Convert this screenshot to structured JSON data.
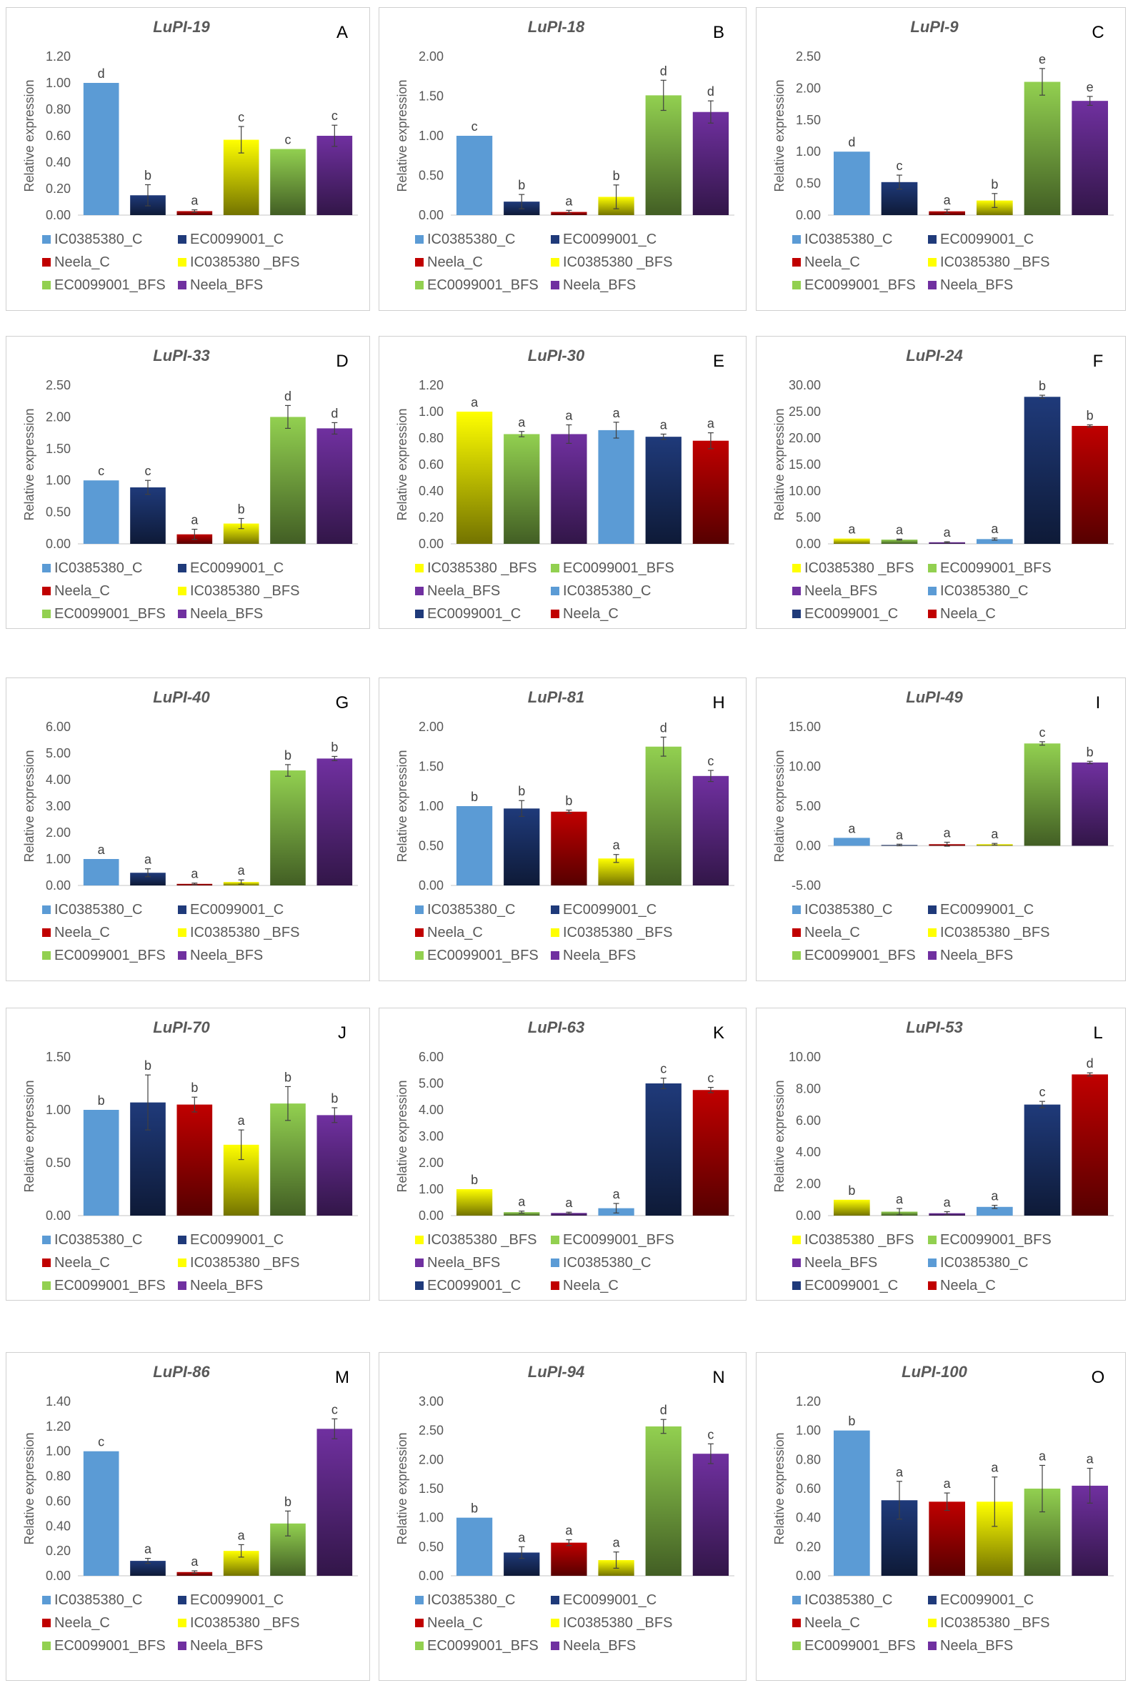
{
  "colors": {
    "IC0385380_C": "#5b9bd5",
    "EC0099001_C": "#1f3a7a",
    "Neela_C": "#c00000",
    "IC0385380_BFS": "#ffff00",
    "EC0099001_BFS": "#92d050",
    "Neela_BFS": "#7030a0"
  },
  "y_axis_label": "Relative expression",
  "legend_orders": {
    "control_first": [
      "IC0385380_C",
      "EC0099001_C",
      "Neela_C",
      "IC0385380 _BFS",
      "EC0099001_BFS",
      "Neela_BFS"
    ],
    "bfs_first": [
      "IC0385380 _BFS",
      "EC0099001_BFS",
      "Neela_BFS",
      "IC0385380_C",
      "EC0099001_C",
      "Neela_C"
    ]
  },
  "chart_data": [
    {
      "panel": "A",
      "title": "LuPI-19",
      "type": "bar",
      "legend": "control_first",
      "ylim": [
        0,
        1.2
      ],
      "ticks": [
        "0.00",
        "0.20",
        "0.40",
        "0.60",
        "0.80",
        "1.00",
        "1.20"
      ],
      "values": [
        1.0,
        0.15,
        0.03,
        0.57,
        0.5,
        0.6
      ],
      "errors": [
        0,
        0.08,
        0.01,
        0.1,
        0,
        0.08
      ],
      "letters": [
        "d",
        "b",
        "a",
        "c",
        "c",
        "c"
      ]
    },
    {
      "panel": "B",
      "title": "LuPI-18",
      "type": "bar",
      "legend": "control_first",
      "ylim": [
        0,
        2.0
      ],
      "ticks": [
        "0.00",
        "0.50",
        "1.00",
        "1.50",
        "2.00"
      ],
      "values": [
        1.0,
        0.17,
        0.04,
        0.23,
        1.51,
        1.3
      ],
      "errors": [
        0,
        0.09,
        0.02,
        0.15,
        0.19,
        0.14
      ],
      "letters": [
        "c",
        "b",
        "a",
        "b",
        "d",
        "d"
      ]
    },
    {
      "panel": "C",
      "title": "LuPI-9",
      "type": "bar",
      "legend": "control_first",
      "ylim": [
        0,
        2.5
      ],
      "ticks": [
        "0.00",
        "0.50",
        "1.00",
        "1.50",
        "2.00",
        "2.50"
      ],
      "values": [
        1.0,
        0.52,
        0.06,
        0.23,
        2.1,
        1.8
      ],
      "errors": [
        0,
        0.11,
        0.03,
        0.11,
        0.21,
        0.07
      ],
      "letters": [
        "d",
        "c",
        "a",
        "b",
        "e",
        "e"
      ]
    },
    {
      "panel": "D",
      "title": "LuPI-33",
      "type": "bar",
      "legend": "control_first",
      "ylim": [
        0,
        2.5
      ],
      "ticks": [
        "0.00",
        "0.50",
        "1.00",
        "1.50",
        "2.00",
        "2.50"
      ],
      "values": [
        1.0,
        0.89,
        0.15,
        0.32,
        2.0,
        1.82
      ],
      "errors": [
        0,
        0.11,
        0.08,
        0.08,
        0.18,
        0.09
      ],
      "letters": [
        "c",
        "c",
        "a",
        "b",
        "d",
        "d"
      ]
    },
    {
      "panel": "E",
      "title": "LuPI-30",
      "type": "bar",
      "legend": "bfs_first",
      "ylim": [
        0,
        1.2
      ],
      "ticks": [
        "0.00",
        "0.20",
        "0.40",
        "0.60",
        "0.80",
        "1.00",
        "1.20"
      ],
      "values": [
        1.0,
        0.83,
        0.83,
        0.86,
        0.81,
        0.78
      ],
      "errors": [
        0,
        0.02,
        0.07,
        0.06,
        0.02,
        0.06
      ],
      "letters": [
        "a",
        "a",
        "a",
        "a",
        "a",
        "a"
      ]
    },
    {
      "panel": "F",
      "title": "LuPI-24",
      "type": "bar",
      "legend": "bfs_first",
      "ylim": [
        0,
        30
      ],
      "ticks": [
        "0.00",
        "5.00",
        "10.00",
        "15.00",
        "20.00",
        "25.00",
        "30.00"
      ],
      "values": [
        1.0,
        0.8,
        0.3,
        0.9,
        27.8,
        22.3
      ],
      "errors": [
        0,
        0.1,
        0.1,
        0.2,
        0.3,
        0.2
      ],
      "letters": [
        "a",
        "a",
        "a",
        "a",
        "b",
        "b"
      ]
    },
    {
      "panel": "G",
      "title": "LuPI-40",
      "type": "bar",
      "legend": "control_first",
      "ylim": [
        0,
        6.0
      ],
      "ticks": [
        "0.00",
        "1.00",
        "2.00",
        "3.00",
        "4.00",
        "5.00",
        "6.00"
      ],
      "values": [
        1.0,
        0.48,
        0.06,
        0.13,
        4.35,
        4.8
      ],
      "errors": [
        0,
        0.15,
        0.03,
        0.08,
        0.22,
        0.08
      ],
      "letters": [
        "a",
        "a",
        "a",
        "a",
        "b",
        "b"
      ]
    },
    {
      "panel": "H",
      "title": "LuPI-81",
      "type": "bar",
      "legend": "control_first",
      "ylim": [
        0,
        2.0
      ],
      "ticks": [
        "0.00",
        "0.50",
        "1.00",
        "1.50",
        "2.00"
      ],
      "values": [
        1.0,
        0.97,
        0.93,
        0.34,
        1.75,
        1.38
      ],
      "errors": [
        0,
        0.1,
        0.02,
        0.05,
        0.12,
        0.07
      ],
      "letters": [
        "b",
        "b",
        "b",
        "a",
        "d",
        "c"
      ]
    },
    {
      "panel": "I",
      "title": "LuPI-49",
      "type": "bar",
      "legend": "control_first",
      "ylim": [
        -5,
        15
      ],
      "ticks": [
        "-5.00",
        "0.00",
        "5.00",
        "10.00",
        "15.00"
      ],
      "values": [
        1.0,
        0.1,
        0.2,
        0.2,
        12.9,
        10.5
      ],
      "errors": [
        0,
        0.1,
        0.25,
        0.1,
        0.22,
        0.15
      ],
      "letters": [
        "a",
        "a",
        "a",
        "a",
        "c",
        "b"
      ]
    },
    {
      "panel": "J",
      "title": "LuPI-70",
      "type": "bar",
      "legend": "control_first",
      "ylim": [
        0,
        1.5
      ],
      "ticks": [
        "0.00",
        "0.50",
        "1.00",
        "1.50"
      ],
      "values": [
        1.0,
        1.07,
        1.05,
        0.67,
        1.06,
        0.95
      ],
      "errors": [
        0,
        0.26,
        0.07,
        0.14,
        0.16,
        0.07
      ],
      "letters": [
        "b",
        "b",
        "b",
        "a",
        "b",
        "b"
      ]
    },
    {
      "panel": "K",
      "title": "LuPI-63",
      "type": "bar",
      "legend": "bfs_first",
      "ylim": [
        0,
        6.0
      ],
      "ticks": [
        "0.00",
        "1.00",
        "2.00",
        "3.00",
        "4.00",
        "5.00",
        "6.00"
      ],
      "values": [
        1.0,
        0.13,
        0.1,
        0.28,
        5.0,
        4.75
      ],
      "errors": [
        0,
        0.04,
        0.03,
        0.18,
        0.2,
        0.1
      ],
      "letters": [
        "b",
        "a",
        "a",
        "a",
        "c",
        "c"
      ]
    },
    {
      "panel": "L",
      "title": "LuPI-53",
      "type": "bar",
      "legend": "bfs_first",
      "ylim": [
        0,
        10
      ],
      "ticks": [
        "0.00",
        "2.00",
        "4.00",
        "6.00",
        "8.00",
        "10.00"
      ],
      "values": [
        1.0,
        0.25,
        0.15,
        0.55,
        7.0,
        8.9
      ],
      "errors": [
        0,
        0.2,
        0.1,
        0.1,
        0.2,
        0.1
      ],
      "letters": [
        "b",
        "a",
        "a",
        "a",
        "c",
        "d"
      ]
    },
    {
      "panel": "M",
      "title": "LuPI-86",
      "type": "bar",
      "legend": "control_first",
      "ylim": [
        0,
        1.4
      ],
      "ticks": [
        "0.00",
        "0.20",
        "0.40",
        "0.60",
        "0.80",
        "1.00",
        "1.20",
        "1.40"
      ],
      "values": [
        1.0,
        0.12,
        0.03,
        0.2,
        0.42,
        1.18
      ],
      "errors": [
        0,
        0.02,
        0.01,
        0.05,
        0.1,
        0.08
      ],
      "letters": [
        "c",
        "a",
        "a",
        "a",
        "b",
        "c"
      ]
    },
    {
      "panel": "N",
      "title": "LuPI-94",
      "type": "bar",
      "legend": "control_first",
      "ylim": [
        0,
        3.0
      ],
      "ticks": [
        "0.00",
        "0.50",
        "1.00",
        "1.50",
        "2.00",
        "2.50",
        "3.00"
      ],
      "values": [
        1.0,
        0.4,
        0.57,
        0.27,
        2.57,
        2.1
      ],
      "errors": [
        0,
        0.1,
        0.05,
        0.14,
        0.12,
        0.17
      ],
      "letters": [
        "b",
        "a",
        "a",
        "a",
        "d",
        "c"
      ]
    },
    {
      "panel": "O",
      "title": "LuPI-100",
      "type": "bar",
      "legend": "control_first",
      "ylim": [
        0,
        1.2
      ],
      "ticks": [
        "0.00",
        "0.20",
        "0.40",
        "0.60",
        "0.80",
        "1.00",
        "1.20"
      ],
      "values": [
        1.0,
        0.52,
        0.51,
        0.51,
        0.6,
        0.62
      ],
      "errors": [
        0,
        0.13,
        0.06,
        0.17,
        0.16,
        0.12
      ],
      "letters": [
        "b",
        "a",
        "a",
        "a",
        "a",
        "a"
      ]
    }
  ]
}
